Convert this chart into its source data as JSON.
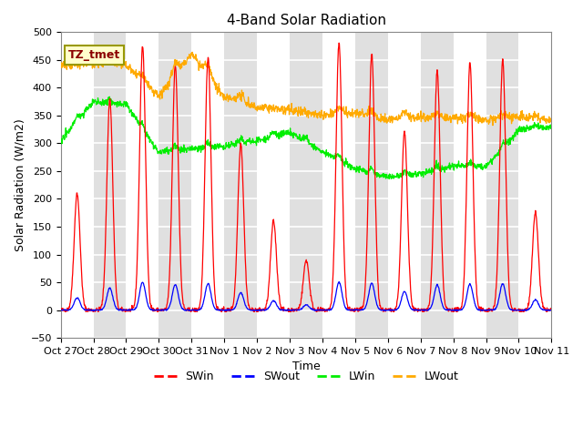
{
  "title": "4-Band Solar Radiation",
  "ylabel": "Solar Radiation (W/m2)",
  "xlabel": "Time",
  "label_text": "TZ_tmet",
  "ylim": [
    -50,
    500
  ],
  "colors": {
    "SWin": "#ff0000",
    "SWout": "#0000ff",
    "LWin": "#00ee00",
    "LWout": "#ffaa00"
  },
  "legend": [
    "SWin",
    "SWout",
    "LWin",
    "LWout"
  ],
  "xtick_labels": [
    "Oct 27",
    "Oct 28",
    "Oct 29",
    "Oct 30",
    "Oct 31",
    "Nov 1",
    "Nov 2",
    "Nov 3",
    "Nov 4",
    "Nov 5",
    "Nov 6",
    "Nov 7",
    "Nov 8",
    "Nov 9",
    "Nov 10",
    "Nov 11"
  ],
  "gray_band_color": "#e0e0e0",
  "bg_color": "#ffffff",
  "title_fontsize": 11,
  "axis_fontsize": 9,
  "tick_fontsize": 8,
  "n_days": 15,
  "pts_per_day": 96
}
